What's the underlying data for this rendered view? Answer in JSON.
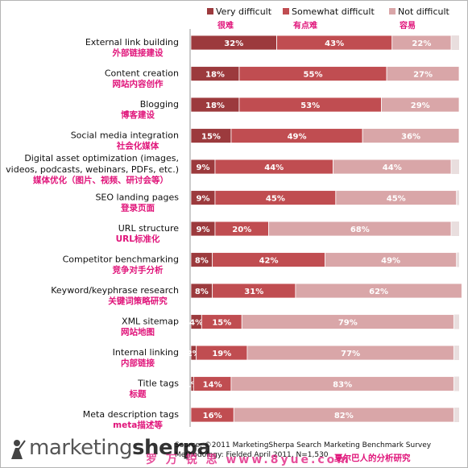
{
  "chart_data": {
    "type": "bar",
    "stacked": "100%",
    "orientation": "horizontal",
    "legend_position": "top",
    "series": [
      {
        "name": "Very difficult",
        "cn": "很难",
        "color": "#9c3a3d"
      },
      {
        "name": "Somewhat difficult",
        "cn": "有点难",
        "color": "#c04d51"
      },
      {
        "name": "Not difficult",
        "cn": "容易",
        "color": "#d9a6a8"
      }
    ],
    "categories": [
      {
        "en": [
          "External link building"
        ],
        "cn": "外部链接建设",
        "values": [
          32,
          43,
          22
        ]
      },
      {
        "en": [
          "Content creation"
        ],
        "cn": "网站内容创作",
        "values": [
          18,
          55,
          27
        ]
      },
      {
        "en": [
          "Blogging"
        ],
        "cn": "博客建设",
        "values": [
          18,
          53,
          29
        ]
      },
      {
        "en": [
          "Social media integration"
        ],
        "cn": "社会化媒体",
        "values": [
          15,
          49,
          36
        ]
      },
      {
        "en": [
          "Digital asset optimization (images,",
          "videos, podcasts, webinars, PDFs, etc.)"
        ],
        "cn": "媒体优化（图片、视频、研讨会等）",
        "values": [
          9,
          44,
          44
        ]
      },
      {
        "en": [
          "SEO landing pages"
        ],
        "cn": "登录页面",
        "values": [
          9,
          45,
          45
        ]
      },
      {
        "en": [
          "URL structure"
        ],
        "cn": "URL标准化",
        "values": [
          9,
          20,
          68
        ]
      },
      {
        "en": [
          "Competitor benchmarking"
        ],
        "cn": "竞争对手分析",
        "values": [
          8,
          42,
          49
        ]
      },
      {
        "en": [
          "Keyword/keyphrase research"
        ],
        "cn": "关键词策略研究",
        "values": [
          8,
          31,
          62
        ]
      },
      {
        "en": [
          "XML sitemap"
        ],
        "cn": "网站地图",
        "values": [
          4,
          15,
          79
        ]
      },
      {
        "en": [
          "Internal linking"
        ],
        "cn": "内部链接",
        "values": [
          2,
          19,
          77
        ]
      },
      {
        "en": [
          "Title tags"
        ],
        "cn": "标题",
        "values": [
          1,
          14,
          83
        ]
      },
      {
        "en": [
          "Meta description tags"
        ],
        "cn": "meta描述等",
        "values": [
          0,
          16,
          82
        ]
      }
    ]
  },
  "footer": {
    "logo_light": "marketing",
    "logo_bold": "sherpa",
    "source_line1": "Source: ©2011 MarketingSherpa Search Marketing Benchmark Survey",
    "source_line2": "Methodology: Fielded April 2011, N=1,530",
    "watermark": "罗 万 锐 思  www.8yue.com",
    "analysis_note": "夏尔巴人的分析研究"
  }
}
